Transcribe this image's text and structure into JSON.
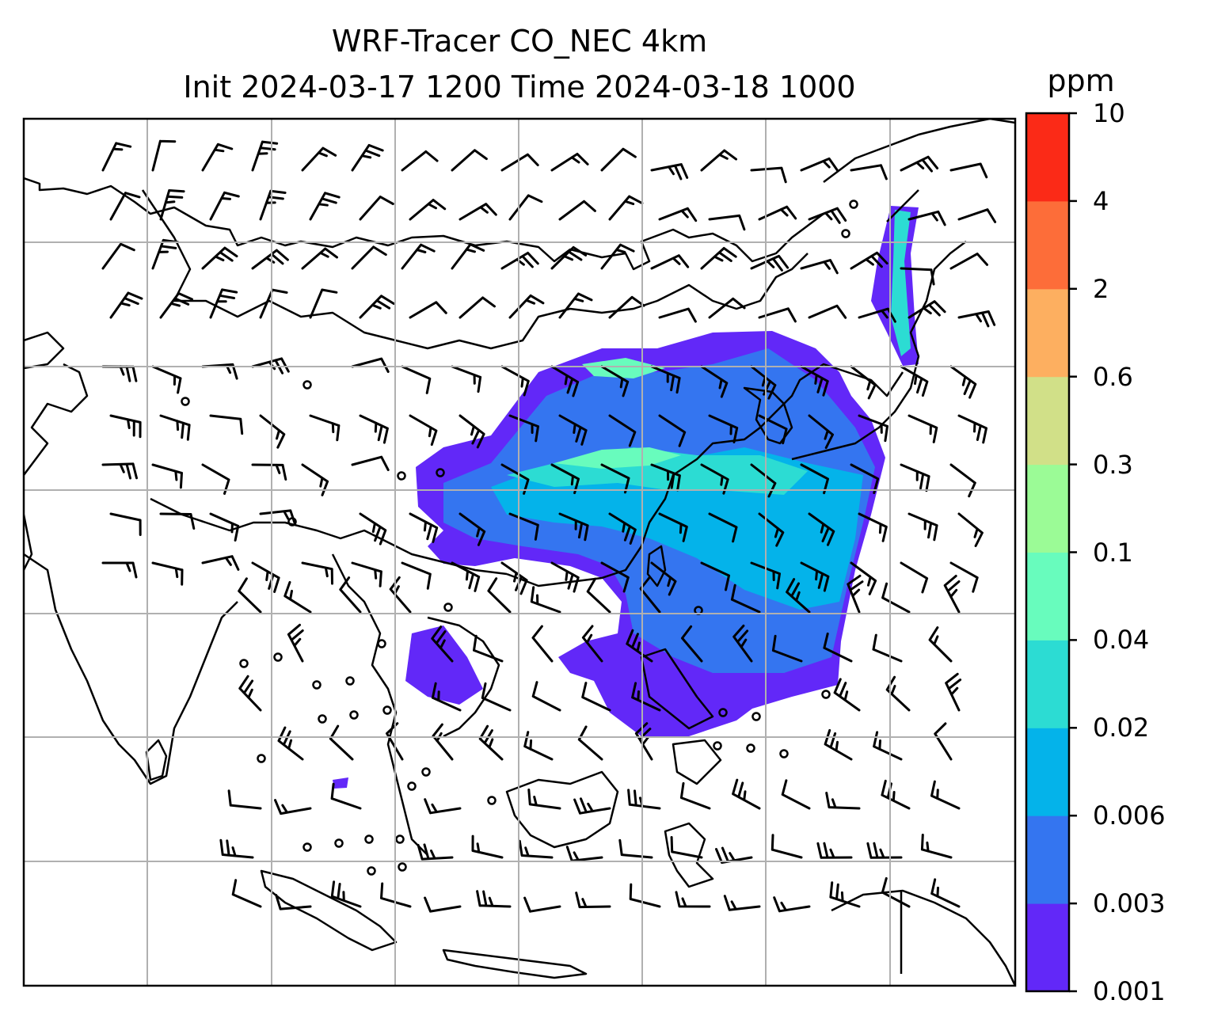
{
  "title": {
    "line1": "WRF-Tracer CO_NEC 4km",
    "line2": "Init 2024-03-17 1200 Time 2024-03-18 1000"
  },
  "colorbar": {
    "unit": "ppm",
    "tick_labels": [
      "0.001",
      "0.003",
      "0.006",
      "0.02",
      "0.04",
      "0.1",
      "0.3",
      "0.6",
      "2",
      "4",
      "10"
    ],
    "colors": [
      "#6228f8",
      "#3475f0",
      "#04b3ea",
      "#2cdcd3",
      "#68fcbd",
      "#9bfb96",
      "#d1e088",
      "#fdaf60",
      "#fd6d39",
      "#fb2a17"
    ]
  },
  "map": {
    "gridlines": true,
    "field": "CO_NEC tracer concentration",
    "overlay": "wind barbs",
    "plume_shading_levels_ppm": [
      "0.001-0.003",
      "0.003-0.006",
      "0.006-0.02",
      "0.02-0.04",
      "0.04-0.1"
    ]
  }
}
